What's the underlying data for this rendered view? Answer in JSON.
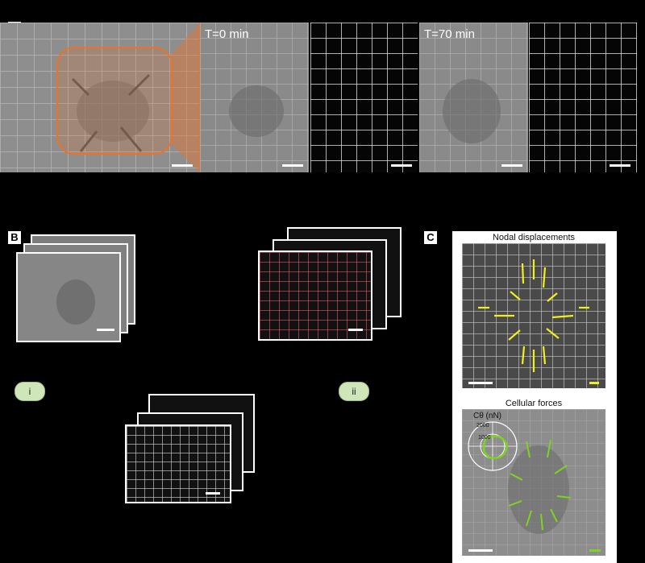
{
  "panels": {
    "a_label": "A",
    "b_label": "B",
    "c_label": "C"
  },
  "panel_a": {
    "t0_label": "T=0 min",
    "t70_label": "T=70 min"
  },
  "panel_b": {
    "step_i": "i",
    "step_ii": "ii"
  },
  "panel_c": {
    "displacements_title": "Nodal displacements",
    "forces_title": "Cellular forces",
    "polar_axis_label": "Cθ (nN)",
    "polar_tick_outer": "2000",
    "polar_tick_inner": "1000"
  },
  "colors": {
    "orange_highlight": "#e8732a",
    "displacement_arrow": "#f2f01c",
    "force_arrow": "#7ed321",
    "badge_fill": "#cfe6b8",
    "red_grid": "#d9535f"
  }
}
